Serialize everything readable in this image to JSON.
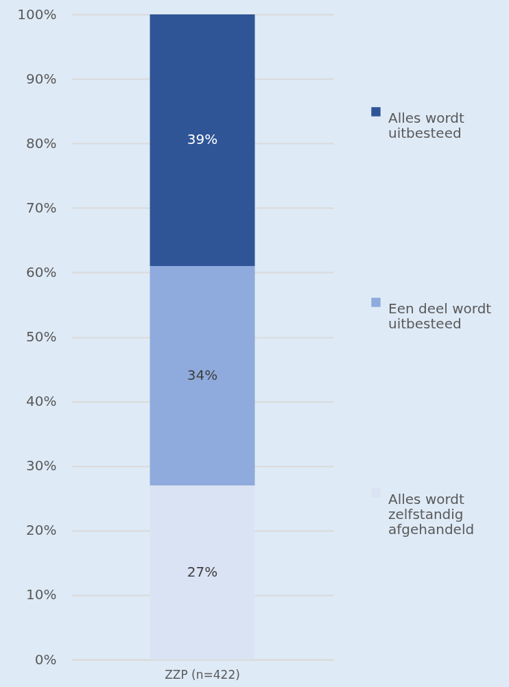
{
  "chart_data": {
    "type": "bar",
    "stacked": true,
    "categories": [
      "ZZP (n=422)"
    ],
    "series": [
      {
        "name": "Alles wordt zelfstandig afgehandeld",
        "color": "#dae3f3",
        "values": [
          27
        ],
        "value_labels": [
          "27%"
        ]
      },
      {
        "name": "Een deel wordt uitbesteed",
        "color": "#8faadc",
        "values": [
          34
        ],
        "value_labels": [
          "34%"
        ]
      },
      {
        "name": "Alles wordt uitbesteed",
        "color": "#2f5597",
        "values": [
          39
        ],
        "value_labels": [
          "39%"
        ]
      }
    ],
    "ylim": [
      0,
      100
    ],
    "yticks": [
      {
        "value": 0,
        "label": "0%"
      },
      {
        "value": 10,
        "label": "10%"
      },
      {
        "value": 20,
        "label": "20%"
      },
      {
        "value": 30,
        "label": "30%"
      },
      {
        "value": 40,
        "label": "40%"
      },
      {
        "value": 50,
        "label": "50%"
      },
      {
        "value": 60,
        "label": "60%"
      },
      {
        "value": 70,
        "label": "70%"
      },
      {
        "value": 80,
        "label": "80%"
      },
      {
        "value": 90,
        "label": "90%"
      },
      {
        "value": 100,
        "label": "100%"
      }
    ],
    "grid": "y",
    "legend": "right"
  }
}
